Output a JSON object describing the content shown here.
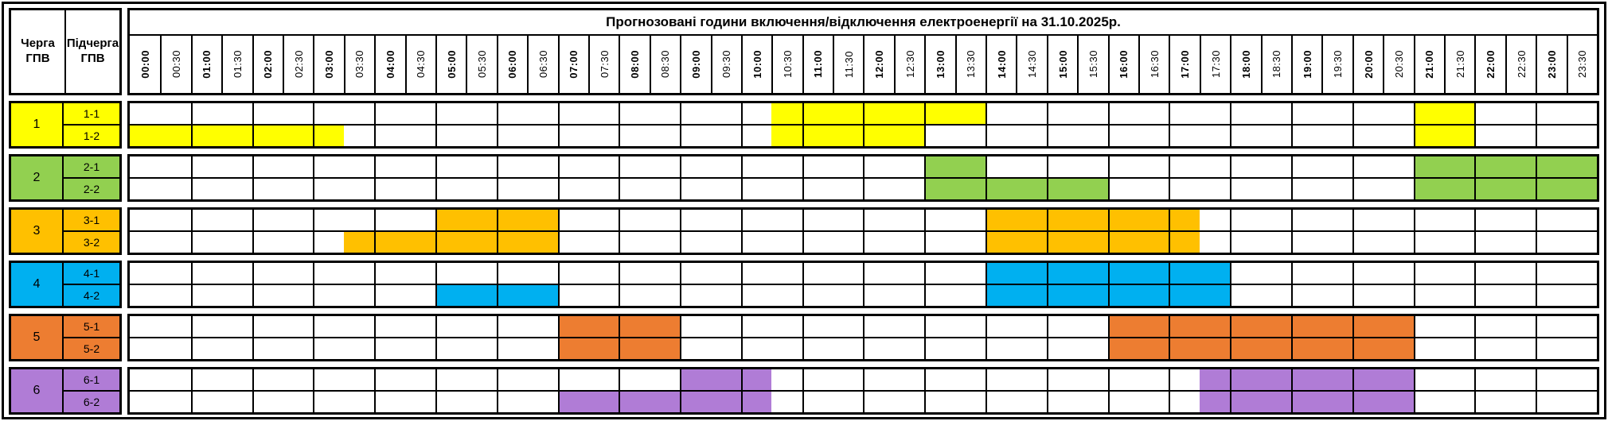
{
  "chart_data": {
    "type": "heatmap",
    "title": "Прогнозовані години включення/відключення електроенергії на 31.10.2025р.",
    "left_header": {
      "queue": "Черга\nГПВ",
      "subqueue": "Підчерга\nГПВ"
    },
    "time_labels": [
      "00:00",
      "00:30",
      "01:00",
      "01:30",
      "02:00",
      "02:30",
      "03:00",
      "03:30",
      "04:00",
      "04:30",
      "05:00",
      "05:30",
      "06:00",
      "06:30",
      "07:00",
      "07:30",
      "08:00",
      "08:30",
      "09:00",
      "09:30",
      "10:00",
      "10:30",
      "11:00",
      "11:30",
      "12:00",
      "12:30",
      "13:00",
      "13:30",
      "14:00",
      "14:30",
      "15:00",
      "15:30",
      "16:00",
      "16:30",
      "17:00",
      "17:30",
      "18:00",
      "18:30",
      "19:00",
      "19:30",
      "20:00",
      "20:30",
      "21:00",
      "21:30",
      "22:00",
      "22:30",
      "23:00",
      "23:30"
    ],
    "grid": {
      "columns": 48,
      "step_minutes": 30,
      "hour_line_every": 2
    },
    "queues": [
      {
        "queue": "1",
        "color": "#FFFF00",
        "subqueues": [
          {
            "label": "1-1",
            "off_intervals": [
              "10:30–14:00",
              "21:00–22:00"
            ],
            "col_ranges": [
              [
                21,
                28
              ],
              [
                42,
                44
              ]
            ]
          },
          {
            "label": "1-2",
            "off_intervals": [
              "00:00–03:30",
              "10:30–13:00",
              "21:00–22:00"
            ],
            "col_ranges": [
              [
                0,
                7
              ],
              [
                21,
                26
              ],
              [
                42,
                44
              ]
            ]
          }
        ]
      },
      {
        "queue": "2",
        "color": "#92D050",
        "subqueues": [
          {
            "label": "2-1",
            "off_intervals": [
              "13:00–14:00",
              "21:00–24:00"
            ],
            "col_ranges": [
              [
                26,
                28
              ],
              [
                42,
                48
              ]
            ]
          },
          {
            "label": "2-2",
            "off_intervals": [
              "13:00–16:00",
              "21:00–24:00"
            ],
            "col_ranges": [
              [
                26,
                32
              ],
              [
                42,
                48
              ]
            ]
          }
        ]
      },
      {
        "queue": "3",
        "color": "#FFC000",
        "subqueues": [
          {
            "label": "3-1",
            "off_intervals": [
              "05:00–07:00",
              "14:00–17:30"
            ],
            "col_ranges": [
              [
                10,
                14
              ],
              [
                28,
                35
              ]
            ]
          },
          {
            "label": "3-2",
            "off_intervals": [
              "03:30–07:00",
              "14:00–17:30"
            ],
            "col_ranges": [
              [
                7,
                14
              ],
              [
                28,
                35
              ]
            ]
          }
        ]
      },
      {
        "queue": "4",
        "color": "#00B0F0",
        "subqueues": [
          {
            "label": "4-1",
            "off_intervals": [
              "14:00–18:00"
            ],
            "col_ranges": [
              [
                28,
                36
              ]
            ]
          },
          {
            "label": "4-2",
            "off_intervals": [
              "05:00–07:00",
              "14:00–18:00"
            ],
            "col_ranges": [
              [
                10,
                14
              ],
              [
                28,
                36
              ]
            ]
          }
        ]
      },
      {
        "queue": "5",
        "color": "#ED7D31",
        "subqueues": [
          {
            "label": "5-1",
            "off_intervals": [
              "07:00–09:00",
              "16:00–21:00"
            ],
            "col_ranges": [
              [
                14,
                18
              ],
              [
                32,
                42
              ]
            ]
          },
          {
            "label": "5-2",
            "off_intervals": [
              "07:00–09:00",
              "16:00–21:00"
            ],
            "col_ranges": [
              [
                14,
                18
              ],
              [
                32,
                42
              ]
            ]
          }
        ]
      },
      {
        "queue": "6",
        "color": "#B07CD6",
        "subqueues": [
          {
            "label": "6-1",
            "off_intervals": [
              "09:00–10:30",
              "17:30–21:00"
            ],
            "col_ranges": [
              [
                18,
                21
              ],
              [
                35,
                42
              ]
            ]
          },
          {
            "label": "6-2",
            "off_intervals": [
              "07:00–10:30",
              "17:30–21:00"
            ],
            "col_ranges": [
              [
                14,
                21
              ],
              [
                35,
                42
              ]
            ]
          }
        ]
      }
    ]
  }
}
